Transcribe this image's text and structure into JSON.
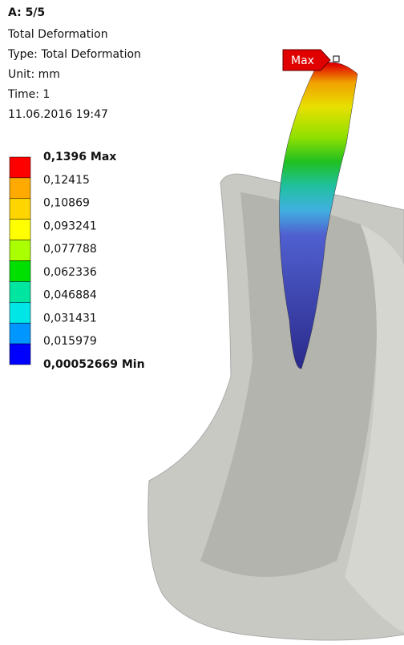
{
  "header": {
    "title": "A: 5/5",
    "lines": [
      "Total Deformation",
      "Type: Total Deformation",
      "Unit: mm",
      "Time: 1",
      "11.06.2016 19:47"
    ]
  },
  "legend": {
    "labels": [
      "0,1396 Max",
      "0,12415",
      "0,10869",
      "0,093241",
      "0,077788",
      "0,062336",
      "0,046884",
      "0,031431",
      "0,015979",
      "0,00052669 Min"
    ],
    "colors": [
      "#ff0000",
      "#ffaa00",
      "#ffd500",
      "#ffff00",
      "#aaff00",
      "#00e000",
      "#00e6a0",
      "#00e6e6",
      "#0096ff",
      "#0000ff"
    ]
  },
  "probe": {
    "label": "Max"
  }
}
